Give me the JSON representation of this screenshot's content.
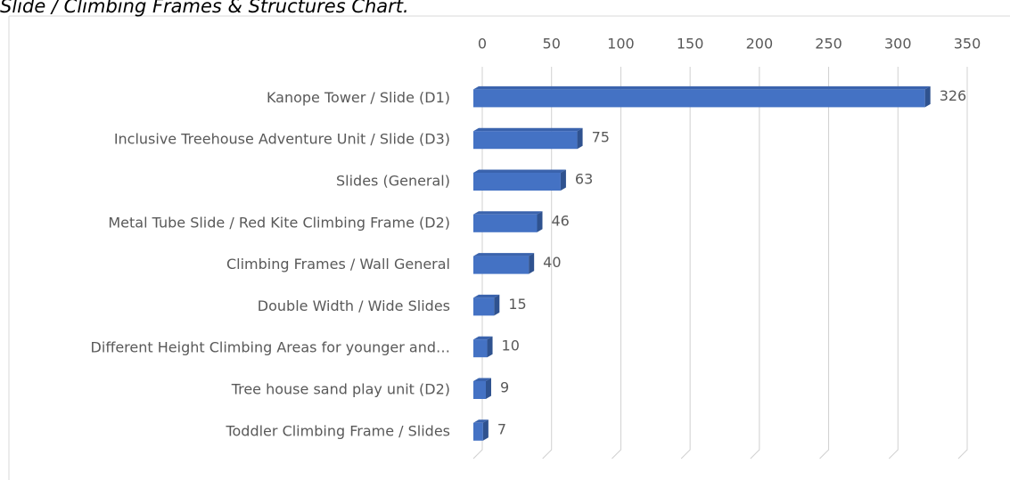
{
  "chart_data": {
    "type": "bar",
    "orientation": "horizontal",
    "title": "Slide / Climbing Frames & Structures Chart.",
    "categories": [
      "Kanope Tower / Slide (D1)",
      "Inclusive Treehouse Adventure Unit / Slide (D3)",
      "Slides (General)",
      "Metal Tube Slide / Red Kite Climbing Frame (D2)",
      "Climbing Frames / Wall General",
      "Double Width / Wide Slides",
      "Different Height Climbing Areas for younger and…",
      "Tree house sand play unit (D2)",
      "Toddler Climbing Frame / Slides"
    ],
    "values": [
      326,
      75,
      63,
      46,
      40,
      15,
      10,
      9,
      7
    ],
    "color": "#4472c4",
    "xlim": [
      0,
      350
    ],
    "xticks": [
      0,
      50,
      100,
      150,
      200,
      250,
      300,
      350
    ],
    "grid": true
  }
}
